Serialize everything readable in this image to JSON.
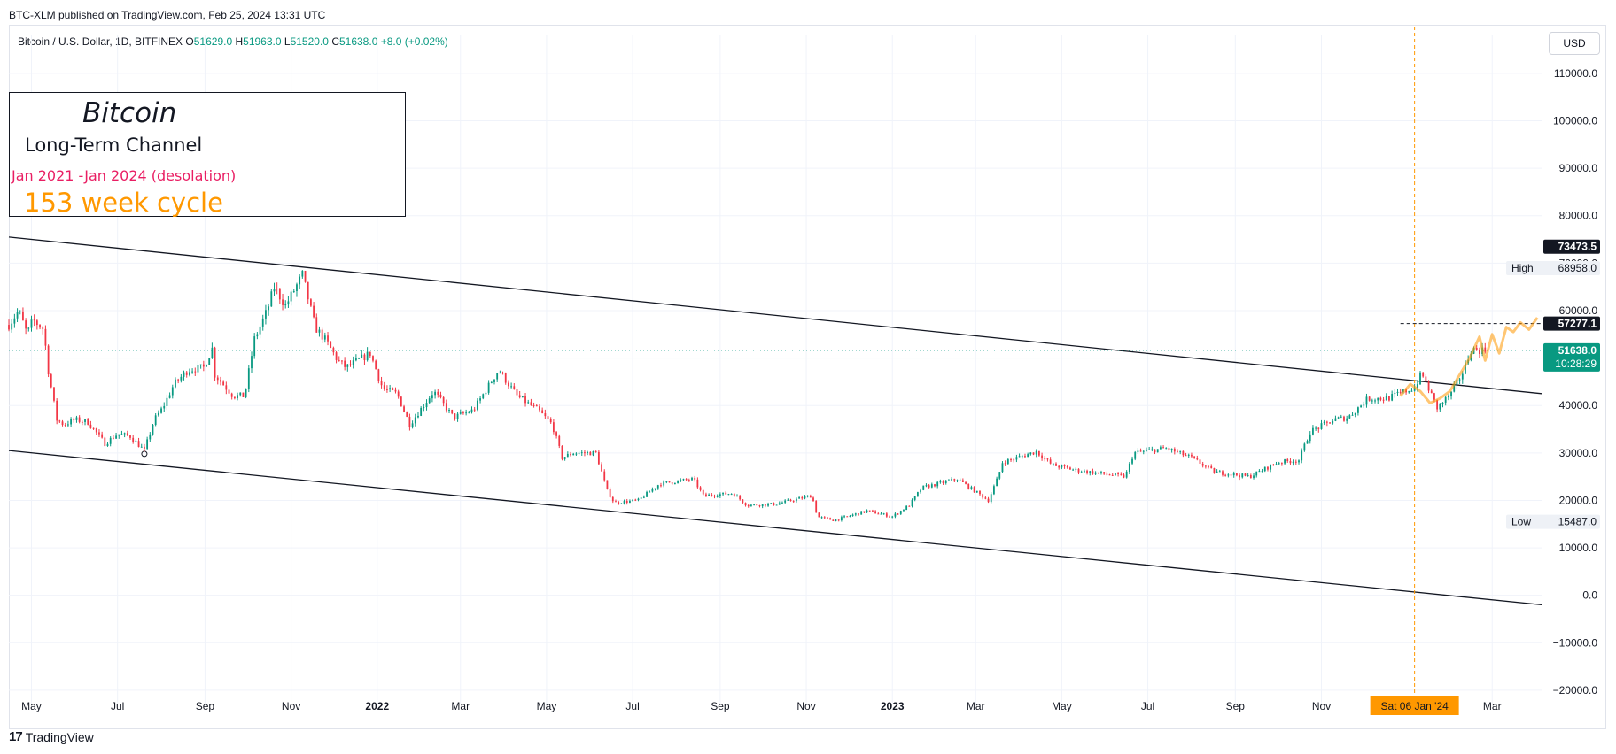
{
  "header": {
    "published": "BTC-XLM published on TradingView.com, Feb 25, 2024 13:31 UTC"
  },
  "symbol": {
    "name": "Bitcoin / U.S. Dollar, 1D, BITFINEX",
    "o_label": "O",
    "o": "51629.0",
    "h_label": "H",
    "h": "51963.0",
    "l_label": "L",
    "l": "51520.0",
    "c_label": "C",
    "c": "51638.0",
    "change": "+8.0 (+0.02%)"
  },
  "currency": "USD",
  "note": {
    "title": "Bitcoin",
    "subtitle": "Long-Term Channel",
    "period": "Jan 2021 -Jan 2024 (desolation)",
    "cycle": "153 week cycle"
  },
  "price_tags": {
    "top_black": "73473.5",
    "high_label": "High",
    "high_value": "68958.0",
    "projection_level": "57277.1",
    "last_price": "51638.0",
    "countdown": "10:28:29",
    "low_label": "Low",
    "low_value": "15487.0"
  },
  "crosshair_date": "Sat 06 Jan '24",
  "footer": {
    "logo": "17",
    "brand": "TradingView"
  },
  "colors": {
    "up": "#089981",
    "down": "#f23645",
    "projection": "#ff9800",
    "channel": "#131722",
    "last_price_line": "#089981",
    "cycle_marker": "#ff9800",
    "note_period": "#e91e63"
  },
  "chart_data": {
    "type": "candlestick",
    "title": "Bitcoin / U.S. Dollar, 1D, BITFINEX",
    "x_range": [
      "2021-04-15",
      "2024-04-05"
    ],
    "y_range": [
      -23000,
      118000
    ],
    "y_ticks": [
      110000,
      100000,
      90000,
      80000,
      70000,
      60000,
      50000,
      40000,
      30000,
      20000,
      10000,
      0,
      -10000,
      -20000
    ],
    "y_tick_labels": [
      "110000.0",
      "100000.0",
      "90000.0",
      "80000.0",
      "70000.0",
      "60000.0",
      "50000.0",
      "40000.0",
      "30000.0",
      "20000.0",
      "10000.0",
      "0.0",
      "−10000.0",
      "−20000.0"
    ],
    "x_ticks": [
      {
        "date": "2021-05-01",
        "label": "May"
      },
      {
        "date": "2021-07-01",
        "label": "Jul"
      },
      {
        "date": "2021-09-01",
        "label": "Sep"
      },
      {
        "date": "2021-11-01",
        "label": "Nov"
      },
      {
        "date": "2022-01-01",
        "label": "2022"
      },
      {
        "date": "2022-03-01",
        "label": "Mar"
      },
      {
        "date": "2022-05-01",
        "label": "May"
      },
      {
        "date": "2022-07-01",
        "label": "Jul"
      },
      {
        "date": "2022-09-01",
        "label": "Sep"
      },
      {
        "date": "2022-11-01",
        "label": "Nov"
      },
      {
        "date": "2023-01-01",
        "label": "2023"
      },
      {
        "date": "2023-03-01",
        "label": "Mar"
      },
      {
        "date": "2023-05-01",
        "label": "May"
      },
      {
        "date": "2023-07-01",
        "label": "Jul"
      },
      {
        "date": "2023-09-01",
        "label": "Sep"
      },
      {
        "date": "2023-11-01",
        "label": "Nov"
      },
      {
        "date": "2024-03-01",
        "label": "Mar"
      }
    ],
    "price_path": [
      [
        "2021-04-15",
        57000
      ],
      [
        "2021-04-22",
        60000
      ],
      [
        "2021-04-28",
        55000
      ],
      [
        "2021-05-02",
        58000
      ],
      [
        "2021-05-10",
        56000
      ],
      [
        "2021-05-12",
        49000
      ],
      [
        "2021-05-19",
        37000
      ],
      [
        "2021-05-24",
        36000
      ],
      [
        "2021-06-01",
        37000
      ],
      [
        "2021-06-10",
        36500
      ],
      [
        "2021-06-22",
        32000
      ],
      [
        "2021-07-01",
        34000
      ],
      [
        "2021-07-10",
        33500
      ],
      [
        "2021-07-20",
        30500
      ],
      [
        "2021-07-27",
        37000
      ],
      [
        "2021-08-02",
        39500
      ],
      [
        "2021-08-10",
        44500
      ],
      [
        "2021-08-20",
        47500
      ],
      [
        "2021-08-31",
        48000
      ],
      [
        "2021-09-06",
        52000
      ],
      [
        "2021-09-08",
        46500
      ],
      [
        "2021-09-21",
        42000
      ],
      [
        "2021-09-29",
        42000
      ],
      [
        "2021-10-06",
        54000
      ],
      [
        "2021-10-15",
        60000
      ],
      [
        "2021-10-20",
        65000
      ],
      [
        "2021-10-28",
        61000
      ],
      [
        "2021-11-09",
        67500
      ],
      [
        "2021-11-18",
        56500
      ],
      [
        "2021-11-26",
        53500
      ],
      [
        "2021-12-04",
        49500
      ],
      [
        "2021-12-10",
        48000
      ],
      [
        "2021-12-27",
        51000
      ],
      [
        "2022-01-05",
        43500
      ],
      [
        "2022-01-15",
        42500
      ],
      [
        "2022-01-24",
        36000
      ],
      [
        "2022-02-10",
        43000
      ],
      [
        "2022-02-24",
        37500
      ],
      [
        "2022-03-10",
        39000
      ],
      [
        "2022-03-28",
        47500
      ],
      [
        "2022-04-10",
        42000
      ],
      [
        "2022-04-25",
        39000
      ],
      [
        "2022-05-05",
        36000
      ],
      [
        "2022-05-12",
        29000
      ],
      [
        "2022-05-20",
        30000
      ],
      [
        "2022-06-05",
        30000
      ],
      [
        "2022-06-13",
        22000
      ],
      [
        "2022-06-18",
        19500
      ],
      [
        "2022-07-05",
        20000
      ],
      [
        "2022-07-20",
        23500
      ],
      [
        "2022-08-13",
        24500
      ],
      [
        "2022-08-20",
        21000
      ],
      [
        "2022-09-10",
        21500
      ],
      [
        "2022-09-20",
        19000
      ],
      [
        "2022-10-10",
        19200
      ],
      [
        "2022-11-05",
        21000
      ],
      [
        "2022-11-09",
        16500
      ],
      [
        "2022-11-21",
        15800
      ],
      [
        "2022-12-14",
        17800
      ],
      [
        "2023-01-01",
        16600
      ],
      [
        "2023-01-13",
        19000
      ],
      [
        "2023-01-22",
        22700
      ],
      [
        "2023-02-16",
        24500
      ],
      [
        "2023-03-10",
        20000
      ],
      [
        "2023-03-17",
        25000
      ],
      [
        "2023-03-20",
        28000
      ],
      [
        "2023-04-13",
        30300
      ],
      [
        "2023-04-24",
        27500
      ],
      [
        "2023-05-12",
        26300
      ],
      [
        "2023-06-15",
        25000
      ],
      [
        "2023-06-21",
        30000
      ],
      [
        "2023-07-14",
        31000
      ],
      [
        "2023-08-01",
        29000
      ],
      [
        "2023-08-17",
        26000
      ],
      [
        "2023-09-11",
        25000
      ],
      [
        "2023-10-01",
        28000
      ],
      [
        "2023-10-16",
        28500
      ],
      [
        "2023-10-24",
        34500
      ],
      [
        "2023-11-10",
        37000
      ],
      [
        "2023-11-20",
        37500
      ],
      [
        "2023-12-04",
        41500
      ],
      [
        "2023-12-18",
        41500
      ],
      [
        "2024-01-06",
        43800
      ],
      [
        "2024-01-11",
        46800
      ],
      [
        "2024-01-22",
        39500
      ],
      [
        "2024-02-01",
        42500
      ],
      [
        "2024-02-10",
        47500
      ],
      [
        "2024-02-15",
        51800
      ],
      [
        "2024-02-25",
        51638
      ]
    ],
    "projection_path": [
      [
        "2023-12-27",
        42000
      ],
      [
        "2024-01-03",
        44500
      ],
      [
        "2024-01-10",
        43000
      ],
      [
        "2024-01-17",
        40500
      ],
      [
        "2024-01-24",
        41500
      ],
      [
        "2024-01-31",
        43000
      ],
      [
        "2024-02-07",
        46500
      ],
      [
        "2024-02-14",
        50000
      ],
      [
        "2024-02-21",
        54500
      ],
      [
        "2024-02-25",
        49500
      ],
      [
        "2024-03-01",
        55000
      ],
      [
        "2024-03-06",
        51000
      ],
      [
        "2024-03-11",
        56500
      ],
      [
        "2024-03-16",
        55500
      ],
      [
        "2024-03-21",
        57500
      ],
      [
        "2024-03-27",
        56000
      ],
      [
        "2024-04-02",
        58500
      ]
    ],
    "channel": {
      "upper": [
        [
          "2021-04-15",
          75500
        ],
        [
          "2024-04-05",
          42500
        ]
      ],
      "lower": [
        [
          "2021-04-15",
          30500
        ],
        [
          "2024-04-05",
          -2000
        ]
      ]
    },
    "high": {
      "date": "2021-11-10",
      "value": 68958.0
    },
    "low": {
      "date": "2022-11-21",
      "value": 15487.0
    },
    "last_price": 51638.0,
    "projection_level": 57277.1,
    "cycle_marker_date": "2024-01-06",
    "grid": true
  }
}
